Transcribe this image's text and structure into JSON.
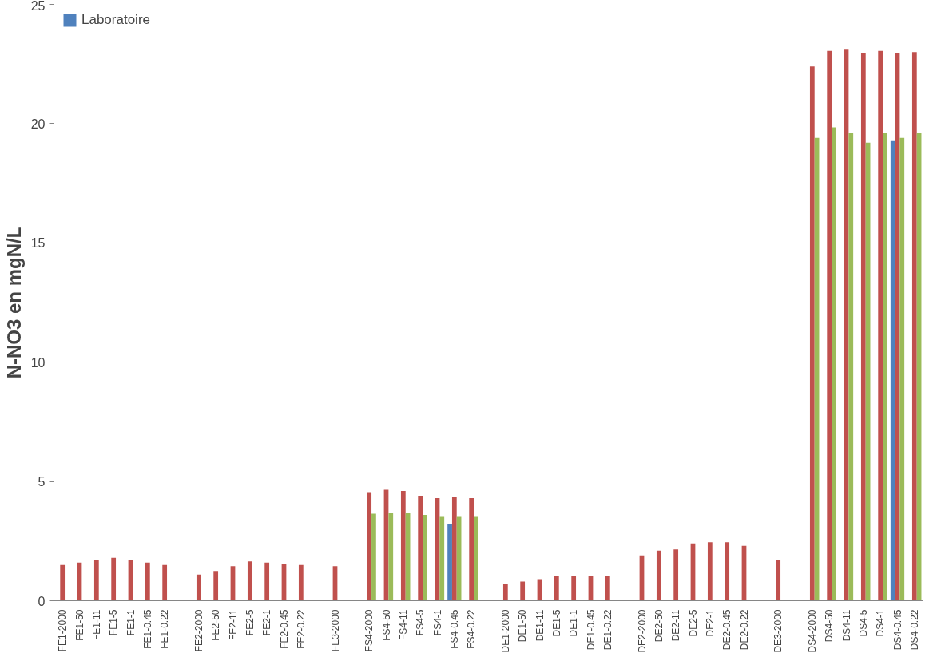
{
  "chart_data": {
    "type": "bar",
    "ylabel": "N-NO3 en mgN/L",
    "categories": [
      "FE1-2000",
      "FE1-50",
      "FE1-11",
      "FE1-5",
      "FE1-1",
      "FE1-0.45",
      "FE1-0.22",
      null,
      "FE2-2000",
      "FE2-50",
      "FE2-11",
      "FE2-5",
      "FE2-1",
      "FE2-0.45",
      "FE2-0.22",
      null,
      "FE3-2000",
      null,
      "FS4-2000",
      "FS4-50",
      "FS4-11",
      "FS4-5",
      "FS4-1",
      "FS4-0.45",
      "FS4-0.22",
      null,
      "DE1-2000",
      "DE1-50",
      "DE1-11",
      "DE1-5",
      "DE1-1",
      "DE1-0.45",
      "DE1-0.22",
      null,
      "DE2-2000",
      "DE2-50",
      "DE2-11",
      "DE2-5",
      "DE2-1",
      "DE2-0.45",
      "DE2-0.22",
      null,
      "DE3-2000",
      null,
      "DS4-2000",
      "DS4-50",
      "DS4-11",
      "DS4-5",
      "DS4-1",
      "DS4-0.45",
      "DS4-0.22"
    ],
    "series": [
      {
        "name": "Laboratoire",
        "color": "#4f81bd",
        "values": [
          null,
          null,
          null,
          null,
          null,
          null,
          null,
          null,
          null,
          null,
          null,
          null,
          null,
          null,
          null,
          null,
          null,
          null,
          null,
          null,
          null,
          null,
          null,
          3.2,
          null,
          null,
          null,
          null,
          null,
          null,
          null,
          null,
          null,
          null,
          null,
          null,
          null,
          null,
          null,
          null,
          null,
          null,
          null,
          null,
          null,
          null,
          null,
          null,
          null,
          19.3,
          null
        ]
      },
      {
        "color": "#c0504d",
        "values": [
          1.5,
          1.6,
          1.7,
          1.8,
          1.7,
          1.6,
          1.5,
          null,
          1.1,
          1.25,
          1.45,
          1.65,
          1.6,
          1.55,
          1.5,
          null,
          1.45,
          null,
          4.55,
          4.65,
          4.6,
          4.4,
          4.3,
          4.35,
          4.3,
          null,
          0.7,
          0.8,
          0.9,
          1.05,
          1.05,
          1.05,
          1.05,
          null,
          1.9,
          2.1,
          2.15,
          2.4,
          2.45,
          2.45,
          2.3,
          null,
          1.7,
          null,
          22.4,
          23.05,
          23.1,
          22.95,
          23.05,
          22.95,
          23.0
        ]
      },
      {
        "color": "#9bbb59",
        "values": [
          null,
          null,
          null,
          null,
          null,
          null,
          null,
          null,
          null,
          null,
          null,
          null,
          null,
          null,
          null,
          null,
          null,
          null,
          3.65,
          3.7,
          3.7,
          3.6,
          3.55,
          3.55,
          3.55,
          null,
          null,
          null,
          null,
          null,
          null,
          null,
          null,
          null,
          null,
          null,
          null,
          null,
          null,
          null,
          null,
          null,
          null,
          null,
          19.4,
          19.85,
          19.6,
          19.2,
          19.6,
          19.4,
          19.6
        ]
      }
    ],
    "ylim": [
      0,
      25
    ],
    "yticks": [
      0,
      5,
      10,
      15,
      20,
      25
    ],
    "grid": false,
    "legend": "top left"
  }
}
